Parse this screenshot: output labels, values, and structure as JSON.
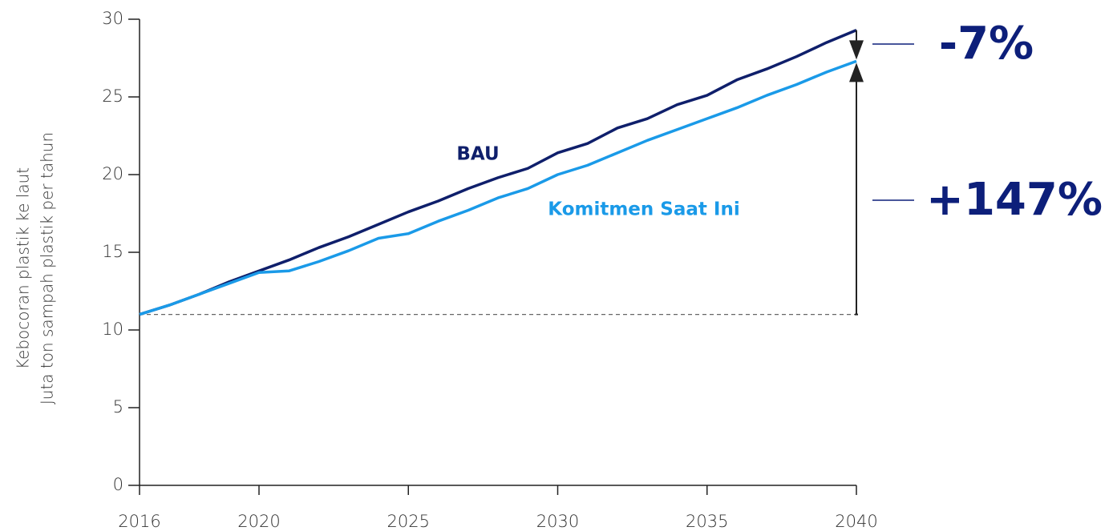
{
  "chart_data": {
    "type": "line",
    "ylabel": [
      "Kebocoran plastik ke laut",
      "Juta ton sampah plastik per tahun"
    ],
    "x": [
      2016,
      2017,
      2018,
      2019,
      2020,
      2021,
      2022,
      2023,
      2024,
      2025,
      2026,
      2027,
      2028,
      2029,
      2030,
      2031,
      2032,
      2033,
      2034,
      2035,
      2036,
      2037,
      2038,
      2039,
      2040
    ],
    "series": [
      {
        "name": "BAU",
        "color": "#0f1f6b",
        "values": [
          11.0,
          11.6,
          12.3,
          13.1,
          13.8,
          14.5,
          15.3,
          16.0,
          16.8,
          17.6,
          18.3,
          19.1,
          19.8,
          20.4,
          21.4,
          22.0,
          23.0,
          23.6,
          24.5,
          25.1,
          26.1,
          26.8,
          27.6,
          28.5,
          29.3
        ]
      },
      {
        "name": "Komitmen Saat Ini",
        "color": "#1a9ae8",
        "values": [
          11.0,
          11.6,
          12.3,
          13.0,
          13.7,
          13.8,
          14.4,
          15.1,
          15.9,
          16.2,
          17.0,
          17.7,
          18.5,
          19.1,
          20.0,
          20.6,
          21.4,
          22.2,
          22.9,
          23.6,
          24.3,
          25.1,
          25.8,
          26.6,
          27.3
        ]
      }
    ],
    "annotations": [
      "-7%",
      "+147%"
    ],
    "annotation_color": "#0d1f7a",
    "xlim": [
      2016,
      2040
    ],
    "xticks": [
      2016,
      2020,
      2025,
      2030,
      2035,
      2040
    ],
    "ylim": [
      0,
      30
    ],
    "yticks": [
      0,
      5,
      10,
      15,
      20,
      25,
      30
    ]
  }
}
